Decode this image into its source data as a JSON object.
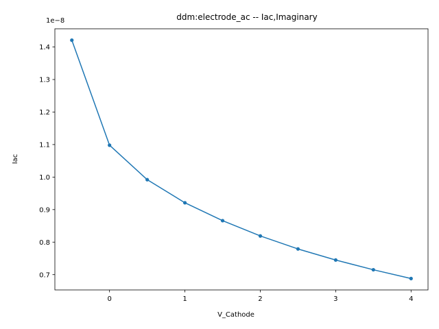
{
  "chart_data": {
    "type": "line",
    "title": "ddm:electrode_ac -- Iac,Imaginary",
    "xlabel": "V_Cathode",
    "ylabel": "Iac",
    "offset_label": "1e−8",
    "y_scale_factor": 1e-08,
    "xlim": [
      -0.725,
      4.225
    ],
    "ylim": [
      0.653,
      1.456
    ],
    "xticks": [
      0,
      1,
      2,
      3,
      4
    ],
    "xtick_labels": [
      "0",
      "1",
      "2",
      "3",
      "4"
    ],
    "yticks": [
      0.7,
      0.8,
      0.9,
      1.0,
      1.1,
      1.2,
      1.3,
      1.4
    ],
    "ytick_labels": [
      "0.7",
      "0.8",
      "0.9",
      "1.0",
      "1.1",
      "1.2",
      "1.3",
      "1.4"
    ],
    "grid": false,
    "series": [
      {
        "color": "#1f77b4",
        "marker": "circle",
        "x": [
          -0.5,
          0,
          0.5,
          1,
          1.5,
          2,
          2.5,
          3,
          3.5,
          4
        ],
        "y": [
          1.421,
          1.098,
          0.992,
          0.921,
          0.866,
          0.819,
          0.779,
          0.745,
          0.715,
          0.688
        ]
      }
    ]
  }
}
